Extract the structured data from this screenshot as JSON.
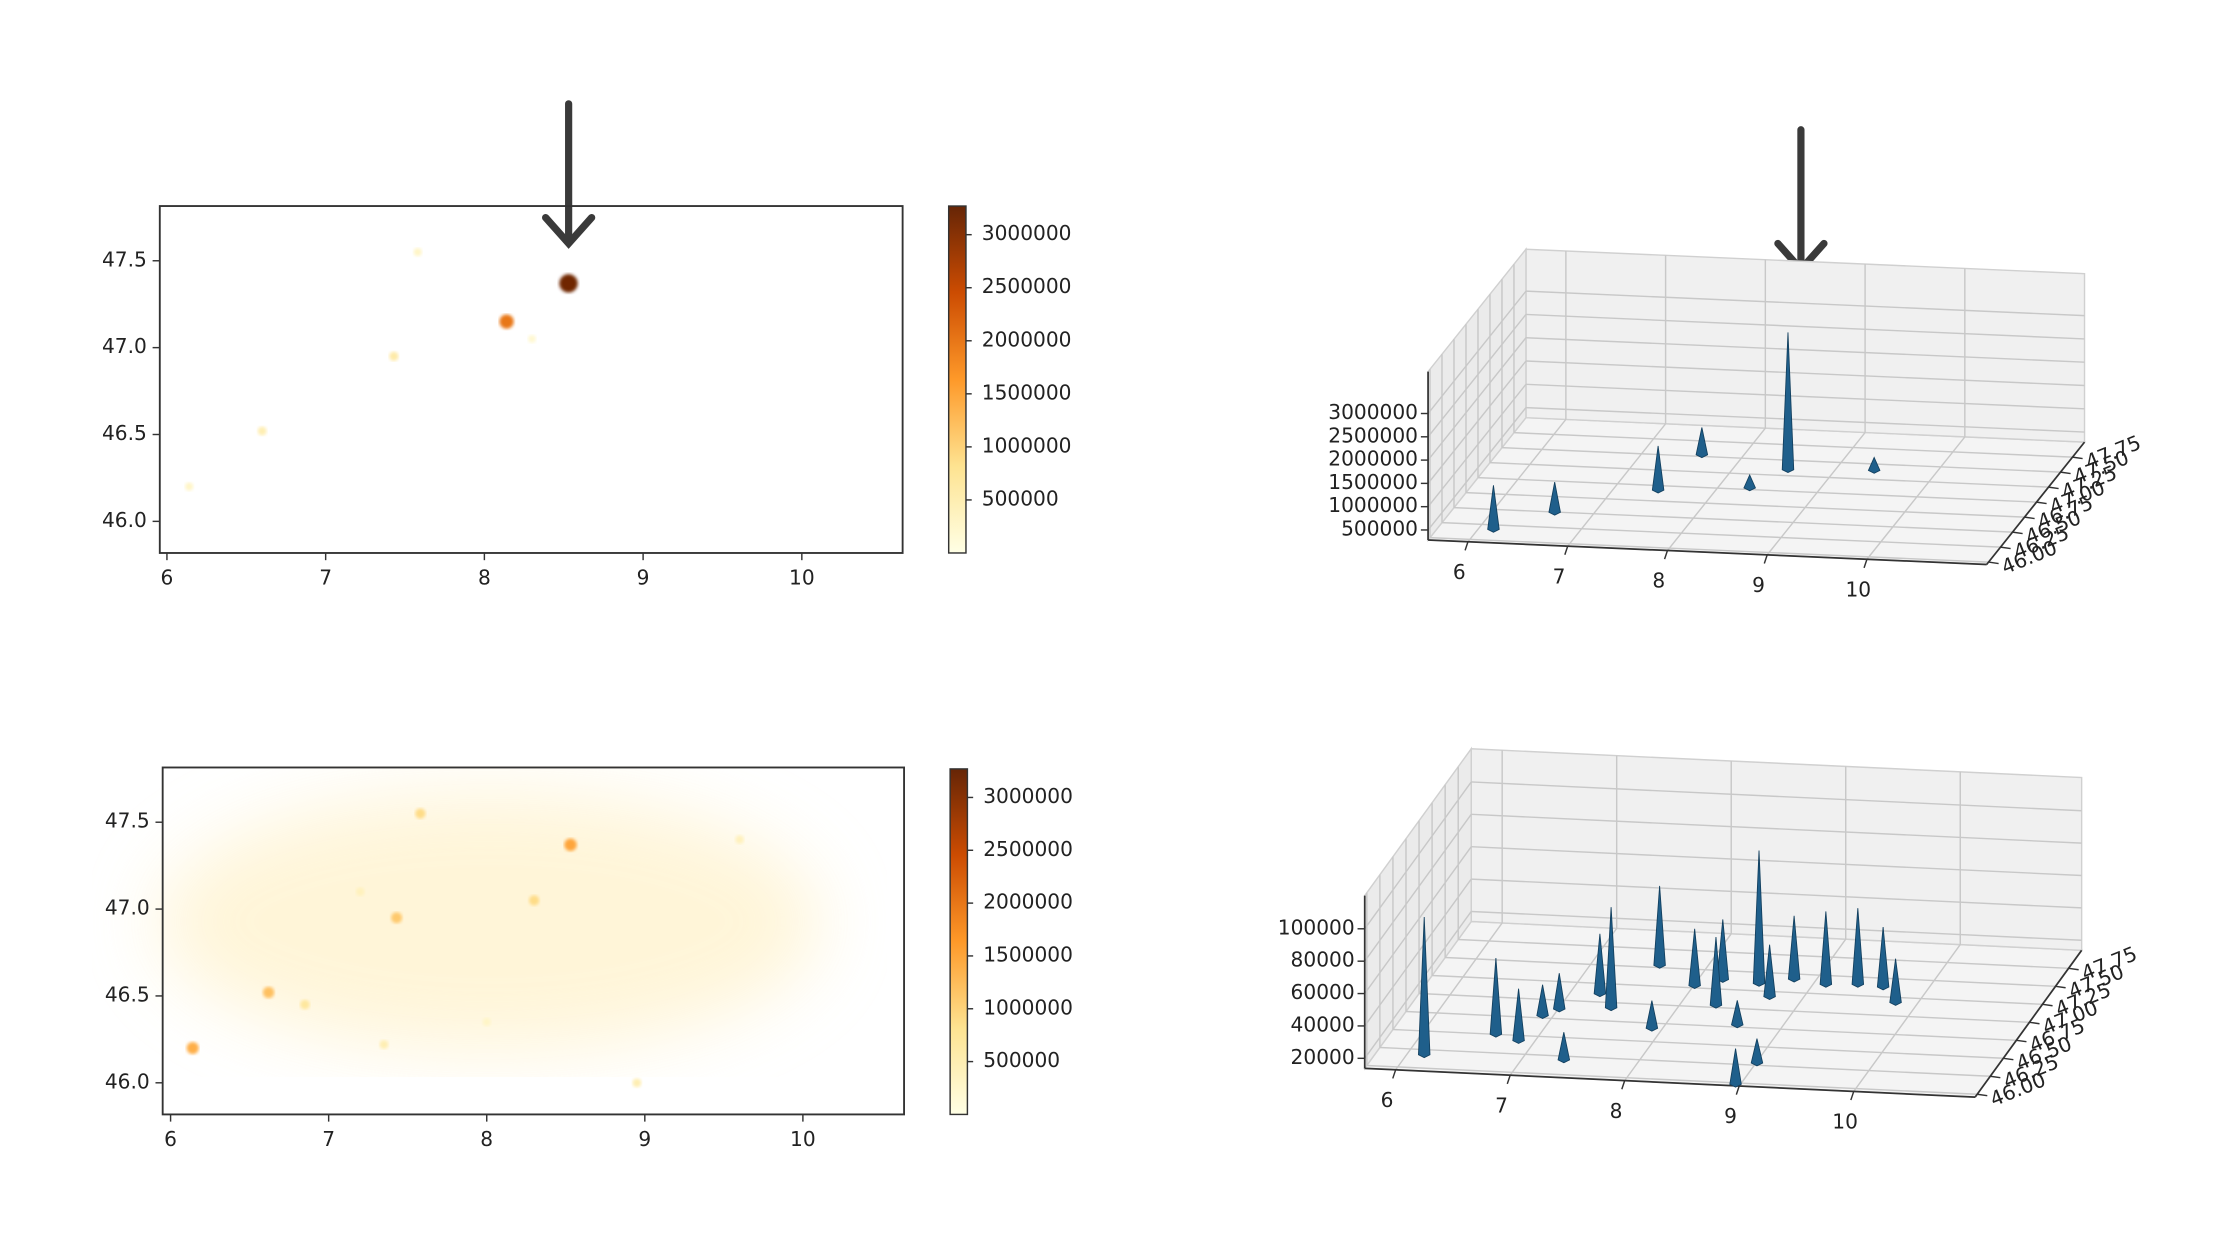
{
  "chart_data": [
    {
      "type": "heatmap",
      "xlim": [
        5.955,
        10.635
      ],
      "ylim": [
        45.818,
        47.815
      ],
      "xticks": [
        6,
        7,
        8,
        9,
        10
      ],
      "yticks": [
        {
          "value": 46,
          "label": "46.0"
        },
        46.5,
        {
          "value": 47,
          "label": "47.0"
        },
        47.5
      ],
      "clim": [
        0,
        3270000
      ],
      "cticks": [
        500000,
        1000000,
        1500000,
        2000000,
        2500000,
        3000000
      ],
      "colormap": [
        "#ffffe5",
        "#fee391",
        "#fe9929",
        "#cc4c02",
        "#662506"
      ],
      "x": [
        8.53,
        8.14,
        7.43,
        6.6,
        7.58,
        6.14,
        8.3
      ],
      "y": [
        47.37,
        47.15,
        46.95,
        46.52,
        47.55,
        46.2,
        47.05
      ],
      "values": [
        3200000,
        2000000,
        600000,
        500000,
        300000,
        300000,
        200000
      ]
    },
    {
      "type": "surface3d",
      "color": "#1f5f8b",
      "xlim": [
        5.6,
        11.2
      ],
      "ylim": [
        45.96,
        48.0
      ],
      "zlim": [
        284000,
        3900000
      ],
      "xticks": [
        6,
        7,
        8,
        9,
        10
      ],
      "yticks": [
        {
          "value": 46,
          "label": "46.00"
        },
        {
          "value": 46.25,
          "label": "46.25"
        },
        {
          "value": 46.5,
          "label": "46.50"
        },
        {
          "value": 46.75,
          "label": "46.75"
        },
        {
          "value": 47,
          "label": "47.00"
        },
        {
          "value": 47.25,
          "label": "47.25"
        },
        {
          "value": 47.5,
          "label": "47.50"
        },
        {
          "value": 47.75,
          "label": "47.75"
        }
      ],
      "zticks": [
        500000,
        1000000,
        1500000,
        2000000,
        2500000,
        3000000
      ],
      "x": [
        7.58,
        9.37,
        8.53,
        8.3,
        7.43,
        6.6,
        6.14
      ],
      "y": [
        47.55,
        47.42,
        47.37,
        47.05,
        46.95,
        46.52,
        46.2
      ],
      "values": [
        840000,
        530000,
        3200000,
        530000,
        1200000,
        900000,
        1200000
      ]
    },
    {
      "type": "heatmap",
      "xlim": [
        5.95,
        10.64
      ],
      "ylim": [
        45.818,
        47.815
      ],
      "xticks": [
        6,
        7,
        8,
        9,
        10
      ],
      "yticks": [
        {
          "value": 46,
          "label": "46.0"
        },
        46.5,
        {
          "value": 47,
          "label": "47.0"
        },
        47.5
      ],
      "clim": [
        0,
        3270000
      ],
      "cticks": [
        500000,
        1000000,
        1500000,
        2000000,
        2500000,
        3000000
      ],
      "colormap": [
        "#ffffe5",
        "#fee391",
        "#fe9929",
        "#cc4c02",
        "#662506"
      ],
      "x": [
        8.53,
        7.58,
        7.43,
        6.14,
        6.62,
        8.3,
        6.85,
        7.35,
        8.95,
        9.6,
        7.2,
        8.0
      ],
      "y": [
        47.37,
        47.55,
        46.95,
        46.2,
        46.52,
        47.05,
        46.45,
        46.22,
        46.0,
        47.4,
        47.1,
        46.35
      ],
      "values": [
        1500000,
        900000,
        1100000,
        1400000,
        1200000,
        900000,
        700000,
        500000,
        500000,
        400000,
        400000,
        300000
      ]
    },
    {
      "type": "surface3d",
      "color": "#1f5f8b",
      "xlim": [
        5.73,
        11.06
      ],
      "ylim": [
        45.96,
        48.0
      ],
      "zlim": [
        13800,
        120500
      ],
      "xticks": [
        6,
        7,
        8,
        9,
        10
      ],
      "yticks": [
        {
          "value": 46,
          "label": "46.00"
        },
        {
          "value": 46.25,
          "label": "46.25"
        },
        {
          "value": 46.5,
          "label": "46.50"
        },
        {
          "value": 46.75,
          "label": "46.75"
        },
        {
          "value": 47,
          "label": "47.00"
        },
        {
          "value": 47.25,
          "label": "47.25"
        },
        {
          "value": 47.5,
          "label": "47.50"
        },
        {
          "value": 47.75,
          "label": "47.75"
        }
      ],
      "zticks": [
        20000,
        40000,
        60000,
        80000,
        100000
      ],
      "x": [
        7.58,
        9.37,
        9.6,
        9.1,
        8.8,
        8.53,
        8.2,
        8.0,
        9.8,
        7.25,
        8.7,
        8.3,
        7.43,
        7.0,
        6.9,
        8.6,
        7.9,
        6.62,
        6.85,
        9.0,
        7.35,
        6.14,
        8.95
      ],
      "y": [
        47.55,
        47.42,
        47.4,
        47.4,
        47.45,
        47.37,
        47.4,
        47.3,
        47.2,
        47.13,
        47.2,
        47.05,
        46.95,
        46.9,
        46.8,
        46.8,
        46.7,
        46.52,
        46.45,
        46.3,
        46.22,
        46.2,
        46.0
      ],
      "values": [
        62000,
        60000,
        50000,
        58000,
        52000,
        95000,
        50000,
        48000,
        40000,
        50000,
        45000,
        55000,
        75000,
        35000,
        32000,
        28000,
        30000,
        60000,
        45000,
        28000,
        30000,
        98000,
        35000
      ]
    }
  ]
}
